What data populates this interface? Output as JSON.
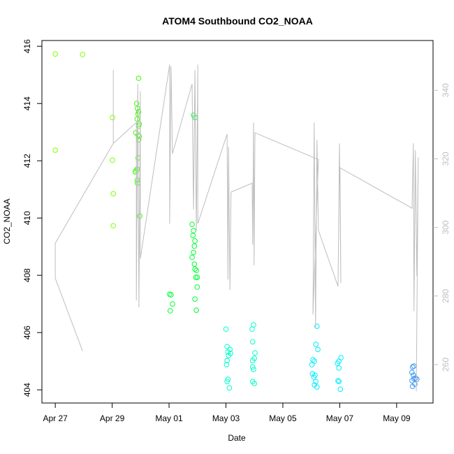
{
  "chart_data": {
    "type": "scatter",
    "title": "ATOM4 Southbound CO2_NOAA",
    "xlabel": "Date",
    "ylabel": "CO2_NOAA",
    "xlim": [
      -0.47,
      13.28
    ],
    "xticks": [
      {
        "value": 0,
        "label": "Apr 27"
      },
      {
        "value": 2,
        "label": "Apr 29"
      },
      {
        "value": 4,
        "label": "May 01"
      },
      {
        "value": 6,
        "label": "May 03"
      },
      {
        "value": 8,
        "label": "May 05"
      },
      {
        "value": 10,
        "label": "May 07"
      },
      {
        "value": 12,
        "label": "May 09"
      }
    ],
    "ylim": [
      403.54,
      416.2
    ],
    "yticks": [
      404,
      406,
      408,
      410,
      412,
      414,
      416
    ],
    "y2lim": [
      248.8,
      354.5
    ],
    "y2ticks": [
      260,
      280,
      300,
      320,
      340
    ],
    "y2color": "#bebebe",
    "grid": false,
    "series": [
      {
        "color": "#80ff00",
        "x": [
          0,
          0.96,
          0,
          2.01,
          2.01,
          2.04,
          2.04
        ],
        "values": [
          415.73,
          415.71,
          412.37,
          413.51,
          412.02,
          410.85,
          409.73
        ]
      },
      {
        "color": "#33ff00",
        "x": [
          2.93,
          2.86,
          2.89,
          2.93,
          2.91,
          2.88,
          2.95,
          2.93,
          2.83,
          2.91,
          2.95,
          2.93,
          2.91,
          2.88,
          2.84,
          2.81,
          2.88,
          2.89,
          2.97
        ],
        "values": [
          414.88,
          414.0,
          413.83,
          413.71,
          413.63,
          413.46,
          413.29,
          413.22,
          412.98,
          412.9,
          412.85,
          412.73,
          412.1,
          411.71,
          411.66,
          411.61,
          411.32,
          411.22,
          410.07
        ]
      },
      {
        "color": "#00ff33",
        "x": [
          4.02,
          4.07,
          4.12,
          4.04,
          4.86,
          4.91,
          4.81,
          4.86,
          4.84,
          4.91,
          4.89,
          4.86,
          4.81,
          4.89,
          4.91,
          4.96,
          4.99,
          4.94,
          4.99,
          4.91,
          4.96
        ],
        "values": [
          407.34,
          407.32,
          407.0,
          406.76,
          413.59,
          413.51,
          409.78,
          409.56,
          409.39,
          409.2,
          409.02,
          408.8,
          408.63,
          408.39,
          408.22,
          408.17,
          407.93,
          407.93,
          407.59,
          407.17,
          406.78
        ]
      },
      {
        "color": "#00ffcc",
        "x": [
          6.0,
          6.04,
          6.14,
          6.07,
          6.16,
          6.09,
          6.04,
          6.02,
          6.07,
          6.04,
          6.12,
          6.97,
          6.92,
          6.94,
          7.02,
          7.0,
          6.94,
          6.94,
          6.97,
          6.94,
          7.0
        ],
        "values": [
          406.12,
          405.51,
          405.41,
          405.32,
          405.27,
          405.2,
          405.02,
          404.88,
          404.37,
          404.29,
          404.07,
          406.27,
          406.12,
          405.68,
          405.29,
          405.1,
          405.02,
          404.8,
          404.71,
          404.29,
          404.22
        ]
      },
      {
        "color": "#00eeff",
        "x": [
          9.2,
          9.16,
          9.23,
          9.06,
          9.11,
          9.02,
          9.04,
          9.13,
          9.09,
          9.16,
          9.11,
          9.2,
          10.04,
          9.97,
          9.92,
          9.97,
          9.94,
          9.97,
          10.02
        ],
        "values": [
          406.22,
          405.59,
          405.41,
          405.05,
          405.0,
          404.88,
          404.56,
          404.51,
          404.44,
          404.29,
          404.17,
          404.1,
          405.12,
          405.0,
          404.93,
          404.76,
          404.32,
          404.29,
          404.02
        ]
      },
      {
        "color": "#3a96f0",
        "x": [
          12.61,
          12.56,
          12.54,
          12.59,
          12.66,
          12.61,
          12.71,
          12.54,
          12.64,
          12.56
        ],
        "values": [
          404.83,
          404.8,
          404.61,
          404.51,
          404.41,
          404.39,
          404.37,
          404.32,
          404.2,
          404.12
        ]
      },
      {
        "color": "#bebebe",
        "axis": "y2",
        "style": "line",
        "x": [
          0.96,
          0,
          0,
          2.04,
          2.04,
          2.04,
          2.85,
          2.85,
          2.9,
          2.94,
          2.99,
          2.99,
          4.02,
          4.02,
          4.07,
          4.12,
          4.81,
          4.86,
          4.91,
          4.96,
          5.01,
          5.01,
          6.04,
          6.07,
          6.09,
          6.14,
          6.18,
          6.92,
          6.94,
          6.97,
          6.99,
          7.02,
          9.25,
          9.06,
          9.1,
          9.15,
          9.2,
          9.25,
          9.94,
          9.99,
          10.04,
          10.01,
          12.54,
          12.59,
          12.61,
          12.66,
          12.71,
          12.76,
          12.69
        ],
        "values": [
          264.0,
          285.2,
          295.4,
          324.5,
          345.9,
          324.5,
          330.6,
          278.7,
          341.8,
          276.7,
          339.8,
          290.9,
          347.5,
          301.1,
          346.9,
          321.5,
          341.8,
          305.2,
          345.9,
          299.1,
          347.5,
          301.1,
          327.2,
          284.8,
          323.5,
          281.8,
          310.3,
          312.9,
          295.0,
          330.6,
          288.9,
          327.6,
          319.8,
          274.6,
          330.6,
          270.5,
          325.5,
          299.1,
          282.8,
          324.5,
          283.8,
          317.4,
          305.6,
          324.5,
          275.6,
          322.5,
          285.8,
          320.4,
          252.2
        ]
      }
    ]
  }
}
